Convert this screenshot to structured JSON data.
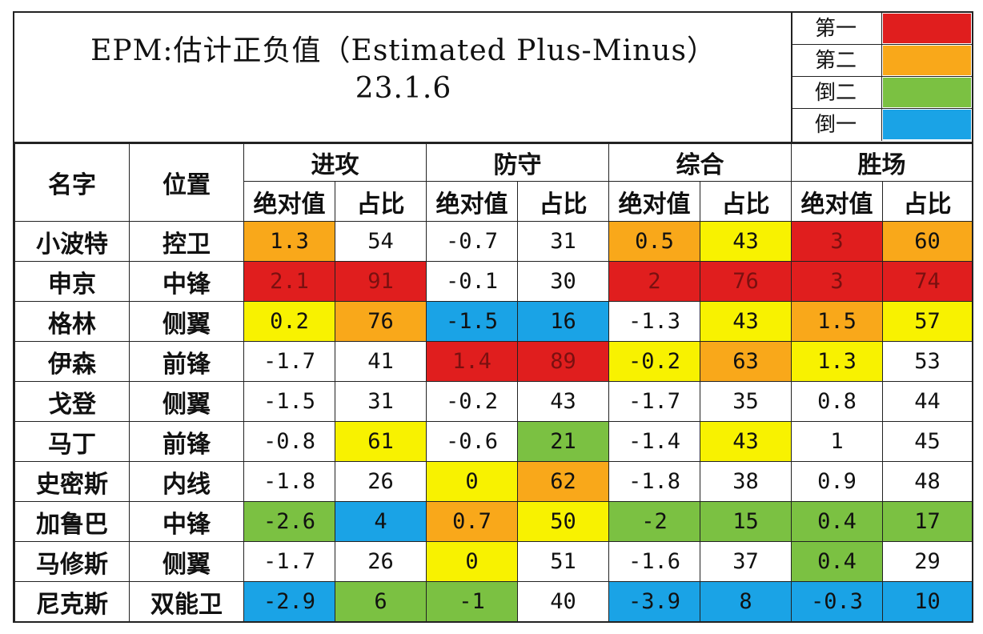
{
  "title": {
    "line1": "EPM:估计正负值（Estimated Plus-Minus）",
    "line2": "23.1.6"
  },
  "legend": [
    {
      "label": "第一",
      "color": "#e01e1e"
    },
    {
      "label": "第二",
      "color": "#f9a81a"
    },
    {
      "label": "倒二",
      "color": "#7bc142"
    },
    {
      "label": "倒一",
      "color": "#1aa3e6"
    }
  ],
  "colors": {
    "red": "#e01e1e",
    "orange": "#f9a81a",
    "yellow": "#f8f200",
    "green": "#7bc142",
    "blue": "#1aa3e6"
  },
  "headers": {
    "name": "名字",
    "position": "位置",
    "groups": [
      "进攻",
      "防守",
      "综合",
      "胜场"
    ],
    "sub": [
      "绝对值",
      "占比",
      "绝对值",
      "占比",
      "绝对值",
      "占比",
      "绝对值",
      "占比"
    ]
  },
  "rows": [
    {
      "name": "小波特",
      "position": "控卫",
      "cells": [
        {
          "v": "1.3",
          "c": "orange"
        },
        {
          "v": "54",
          "c": "none"
        },
        {
          "v": "-0.7",
          "c": "none"
        },
        {
          "v": "31",
          "c": "none"
        },
        {
          "v": "0.5",
          "c": "orange"
        },
        {
          "v": "43",
          "c": "yellow"
        },
        {
          "v": "3",
          "c": "red"
        },
        {
          "v": "60",
          "c": "orange"
        }
      ]
    },
    {
      "name": "申京",
      "position": "中锋",
      "cells": [
        {
          "v": "2.1",
          "c": "red"
        },
        {
          "v": "91",
          "c": "red"
        },
        {
          "v": "-0.1",
          "c": "none"
        },
        {
          "v": "30",
          "c": "none"
        },
        {
          "v": "2",
          "c": "red"
        },
        {
          "v": "76",
          "c": "red"
        },
        {
          "v": "3",
          "c": "red"
        },
        {
          "v": "74",
          "c": "red"
        }
      ]
    },
    {
      "name": "格林",
      "position": "侧翼",
      "cells": [
        {
          "v": "0.2",
          "c": "yellow"
        },
        {
          "v": "76",
          "c": "orange"
        },
        {
          "v": "-1.5",
          "c": "blue"
        },
        {
          "v": "16",
          "c": "blue"
        },
        {
          "v": "-1.3",
          "c": "none"
        },
        {
          "v": "43",
          "c": "yellow"
        },
        {
          "v": "1.5",
          "c": "orange"
        },
        {
          "v": "57",
          "c": "yellow"
        }
      ]
    },
    {
      "name": "伊森",
      "position": "前锋",
      "cells": [
        {
          "v": "-1.7",
          "c": "none"
        },
        {
          "v": "41",
          "c": "none"
        },
        {
          "v": "1.4",
          "c": "red"
        },
        {
          "v": "89",
          "c": "red"
        },
        {
          "v": "-0.2",
          "c": "yellow"
        },
        {
          "v": "63",
          "c": "orange"
        },
        {
          "v": "1.3",
          "c": "yellow"
        },
        {
          "v": "53",
          "c": "none"
        }
      ]
    },
    {
      "name": "戈登",
      "position": "侧翼",
      "cells": [
        {
          "v": "-1.5",
          "c": "none"
        },
        {
          "v": "31",
          "c": "none"
        },
        {
          "v": "-0.2",
          "c": "none"
        },
        {
          "v": "43",
          "c": "none"
        },
        {
          "v": "-1.7",
          "c": "none"
        },
        {
          "v": "35",
          "c": "none"
        },
        {
          "v": "0.8",
          "c": "none"
        },
        {
          "v": "44",
          "c": "none"
        }
      ]
    },
    {
      "name": "马丁",
      "position": "前锋",
      "cells": [
        {
          "v": "-0.8",
          "c": "none"
        },
        {
          "v": "61",
          "c": "yellow"
        },
        {
          "v": "-0.6",
          "c": "none"
        },
        {
          "v": "21",
          "c": "green"
        },
        {
          "v": "-1.4",
          "c": "none"
        },
        {
          "v": "43",
          "c": "yellow"
        },
        {
          "v": "1",
          "c": "none"
        },
        {
          "v": "45",
          "c": "none"
        }
      ]
    },
    {
      "name": "史密斯",
      "position": "内线",
      "cells": [
        {
          "v": "-1.8",
          "c": "none"
        },
        {
          "v": "26",
          "c": "none"
        },
        {
          "v": "0",
          "c": "yellow"
        },
        {
          "v": "62",
          "c": "orange"
        },
        {
          "v": "-1.8",
          "c": "none"
        },
        {
          "v": "38",
          "c": "none"
        },
        {
          "v": "0.9",
          "c": "none"
        },
        {
          "v": "48",
          "c": "none"
        }
      ]
    },
    {
      "name": "加鲁巴",
      "position": "中锋",
      "cells": [
        {
          "v": "-2.6",
          "c": "green"
        },
        {
          "v": "4",
          "c": "blue"
        },
        {
          "v": "0.7",
          "c": "orange"
        },
        {
          "v": "50",
          "c": "yellow"
        },
        {
          "v": "-2",
          "c": "green"
        },
        {
          "v": "15",
          "c": "green"
        },
        {
          "v": "0.4",
          "c": "green"
        },
        {
          "v": "17",
          "c": "green"
        }
      ]
    },
    {
      "name": "马修斯",
      "position": "侧翼",
      "cells": [
        {
          "v": "-1.7",
          "c": "none"
        },
        {
          "v": "26",
          "c": "none"
        },
        {
          "v": "0",
          "c": "yellow"
        },
        {
          "v": "51",
          "c": "none"
        },
        {
          "v": "-1.6",
          "c": "none"
        },
        {
          "v": "37",
          "c": "none"
        },
        {
          "v": "0.4",
          "c": "green"
        },
        {
          "v": "29",
          "c": "none"
        }
      ]
    },
    {
      "name": "尼克斯",
      "position": "双能卫",
      "cells": [
        {
          "v": "-2.9",
          "c": "blue"
        },
        {
          "v": "6",
          "c": "green"
        },
        {
          "v": "-1",
          "c": "green"
        },
        {
          "v": "40",
          "c": "none"
        },
        {
          "v": "-3.9",
          "c": "blue"
        },
        {
          "v": "8",
          "c": "blue"
        },
        {
          "v": "-0.3",
          "c": "blue"
        },
        {
          "v": "10",
          "c": "blue"
        }
      ]
    }
  ]
}
